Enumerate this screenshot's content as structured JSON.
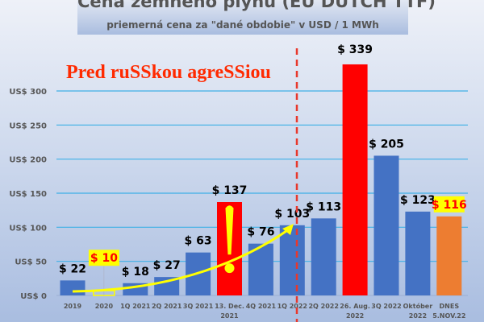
{
  "chart_data": {
    "type": "bar",
    "title": "Cena zemného plynu (EU DUTCH TTF)",
    "subtitle": "priemerná cena za \"dané obdobie\"  v USD / 1 MWh",
    "annotation": "Pred ruSSkou agreSSiou",
    "ylim": [
      0,
      300
    ],
    "yticks": [
      "US$ 0",
      "US$ 50",
      "US$ 100",
      "US$ 150",
      "US$ 200",
      "US$ 250",
      "US$ 300"
    ],
    "ytick_values": [
      0,
      50,
      100,
      150,
      200,
      250,
      300
    ],
    "grid": true,
    "categories": [
      "2019",
      "2020",
      "1Q 2021",
      "2Q 2021",
      "3Q 2021",
      "13. Dec.\n2021",
      "4Q 2021",
      "1Q 2022",
      "2Q 2022",
      "26. Aug.\n2022",
      "3Q 2022",
      "Október\n2022",
      "DNES\n5.NOV.22"
    ],
    "values": [
      22,
      10,
      18,
      27,
      63,
      137,
      76,
      103,
      113,
      339,
      205,
      123,
      116
    ],
    "data_labels": [
      "$ 22",
      "$ 10",
      "$ 18",
      "$ 27",
      "$ 63",
      "$ 137",
      "$ 76",
      "$ 103",
      "$ 113",
      "$ 339",
      "$ 205",
      "$ 123",
      "$ 116"
    ],
    "bar_colors": [
      "#4472c4",
      "#ffff00",
      "#4472c4",
      "#4472c4",
      "#4472c4",
      "#ff0000",
      "#4472c4",
      "#4472c4",
      "#4472c4",
      "#ff0000",
      "#4472c4",
      "#4472c4",
      "#ed7d31"
    ],
    "highlighted_labels": [
      1,
      12
    ],
    "colors": {
      "grid": "#3fb0e6",
      "annotation": "#ff2a00",
      "divider": "#e8382c",
      "arrow": "#ffff00",
      "highlight_bg": "#ffff00",
      "highlight_text": "#ff0000"
    }
  }
}
